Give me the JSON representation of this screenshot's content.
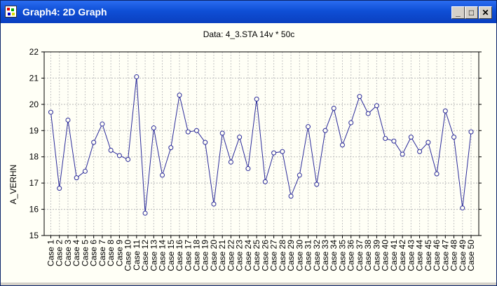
{
  "window": {
    "title": "Graph4: 2D Graph",
    "minimize_glyph": "_",
    "maximize_glyph": "□",
    "close_glyph": "✕",
    "icon": "graph-app-icon"
  },
  "chart_data": {
    "type": "line",
    "title": "Data: 4_3.STA 14v * 50c",
    "xlabel": "",
    "ylabel": "A_VERHN",
    "ylim": [
      15,
      22
    ],
    "yticks": [
      15,
      16,
      17,
      18,
      19,
      20,
      21,
      22
    ],
    "grid": true,
    "line_color": "#2a2a9a",
    "categories": [
      "Case 1",
      "Case 2",
      "Case 3",
      "Case 4",
      "Case 5",
      "Case 6",
      "Case 7",
      "Case 8",
      "Case 9",
      "Case 10",
      "Case 11",
      "Case 12",
      "Case 13",
      "Case 14",
      "Case 15",
      "Case 16",
      "Case 17",
      "Case 18",
      "Case 19",
      "Case 20",
      "Case 21",
      "Case 22",
      "Case 23",
      "Case 24",
      "Case 25",
      "Case 26",
      "Case 27",
      "Case 28",
      "Case 29",
      "Case 30",
      "Case 31",
      "Case 32",
      "Case 33",
      "Case 34",
      "Case 35",
      "Case 36",
      "Case 37",
      "Case 38",
      "Case 39",
      "Case 40",
      "Case 41",
      "Case 42",
      "Case 43",
      "Case 44",
      "Case 45",
      "Case 46",
      "Case 47",
      "Case 48",
      "Case 49",
      "Case 50"
    ],
    "values": [
      19.7,
      16.8,
      19.4,
      17.2,
      17.45,
      18.55,
      19.25,
      18.25,
      18.05,
      17.9,
      21.05,
      15.85,
      19.1,
      17.3,
      18.35,
      20.35,
      18.95,
      19.0,
      18.55,
      16.2,
      18.9,
      17.8,
      18.75,
      17.55,
      20.2,
      17.05,
      18.15,
      18.2,
      16.5,
      17.3,
      19.15,
      16.95,
      19.0,
      19.85,
      18.45,
      19.3,
      20.3,
      19.65,
      19.95,
      18.7,
      18.6,
      18.1,
      18.75,
      18.2,
      18.55,
      17.35,
      19.75,
      18.75,
      16.05,
      18.95
    ]
  }
}
